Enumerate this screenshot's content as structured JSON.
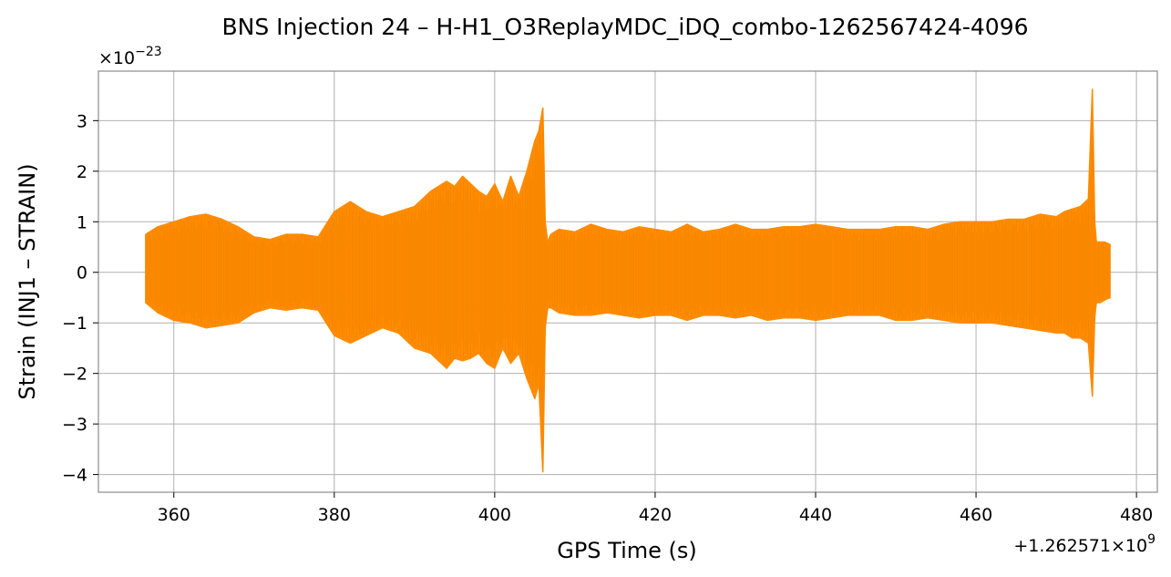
{
  "chart_data": {
    "type": "line",
    "title": "BNS Injection 24 – H-H1_O3ReplayMDC_iDQ_combo-1262567424-4096",
    "xlabel": "GPS Time (s)",
    "ylabel": "Strain (INJ1 – STRAIN)",
    "x_offset_label": "+1.262571×10",
    "x_offset_exp": "9",
    "y_scale_label": "×10",
    "y_scale_exp": "−23",
    "xlim": [
      350.6,
      482.6
    ],
    "ylim": [
      -4.35,
      3.98
    ],
    "x_ticks": [
      360,
      380,
      400,
      420,
      440,
      460,
      480
    ],
    "x_tick_labels": [
      "360",
      "380",
      "400",
      "420",
      "440",
      "460",
      "480"
    ],
    "y_ticks": [
      -4,
      -3,
      -2,
      -1,
      0,
      1,
      2,
      3
    ],
    "y_tick_labels": [
      "−4",
      "−3",
      "−2",
      "−1",
      "0",
      "1",
      "2",
      "3"
    ],
    "grid": true,
    "color": "#ff8c00",
    "series": [
      {
        "x": [
          356.5,
          358,
          360,
          362,
          364,
          366,
          368,
          370,
          372,
          374,
          376,
          378,
          380,
          382,
          384,
          386,
          388,
          390,
          392,
          394,
          395,
          396,
          397,
          398,
          399,
          400,
          401,
          402,
          403,
          404,
          405,
          405.5,
          406,
          406.3,
          406.6,
          407,
          408,
          410,
          412,
          414,
          416,
          418,
          420,
          422,
          424,
          426,
          428,
          430,
          432,
          434,
          436,
          438,
          440,
          442,
          444,
          446,
          448,
          450,
          452,
          454,
          456,
          458,
          460,
          462,
          464,
          466,
          468,
          470,
          471,
          472,
          473,
          474,
          474.5,
          474.8,
          475,
          475.5,
          476,
          476.7
        ],
        "upper": [
          0.75,
          0.9,
          1.0,
          1.1,
          1.15,
          1.05,
          0.9,
          0.7,
          0.65,
          0.75,
          0.75,
          0.7,
          1.2,
          1.4,
          1.2,
          1.1,
          1.2,
          1.3,
          1.6,
          1.8,
          1.7,
          1.9,
          1.75,
          1.6,
          1.5,
          1.75,
          1.4,
          1.9,
          1.5,
          2.0,
          2.6,
          2.8,
          3.25,
          1.0,
          0.6,
          0.75,
          0.85,
          0.8,
          0.95,
          0.85,
          0.8,
          0.9,
          0.85,
          0.8,
          0.95,
          0.8,
          0.85,
          0.95,
          0.85,
          0.85,
          0.9,
          0.9,
          0.95,
          0.9,
          0.85,
          0.85,
          0.85,
          0.9,
          0.9,
          0.85,
          0.95,
          1.0,
          1.0,
          1.0,
          1.05,
          1.05,
          1.15,
          1.1,
          1.2,
          1.25,
          1.3,
          1.45,
          3.62,
          1.0,
          0.6,
          0.6,
          0.6,
          0.55
        ],
        "lower": [
          -0.6,
          -0.8,
          -0.95,
          -1.0,
          -1.1,
          -1.05,
          -1.0,
          -0.8,
          -0.7,
          -0.75,
          -0.7,
          -0.75,
          -1.25,
          -1.4,
          -1.25,
          -1.1,
          -1.2,
          -1.5,
          -1.6,
          -1.9,
          -1.7,
          -1.75,
          -1.7,
          -1.6,
          -1.8,
          -1.9,
          -1.5,
          -1.8,
          -1.6,
          -2.1,
          -2.5,
          -2.2,
          -3.95,
          -1.1,
          -0.7,
          -0.7,
          -0.8,
          -0.85,
          -0.85,
          -0.8,
          -0.85,
          -0.9,
          -0.85,
          -0.85,
          -0.95,
          -0.85,
          -0.85,
          -0.9,
          -0.85,
          -0.95,
          -0.9,
          -0.9,
          -0.95,
          -0.9,
          -0.85,
          -0.85,
          -0.85,
          -0.95,
          -0.95,
          -0.9,
          -0.95,
          -1.0,
          -1.0,
          -1.0,
          -1.05,
          -1.1,
          -1.15,
          -1.2,
          -1.2,
          -1.3,
          -1.3,
          -1.4,
          -2.45,
          -0.9,
          -0.6,
          -0.6,
          -0.55,
          -0.5
        ]
      }
    ]
  }
}
